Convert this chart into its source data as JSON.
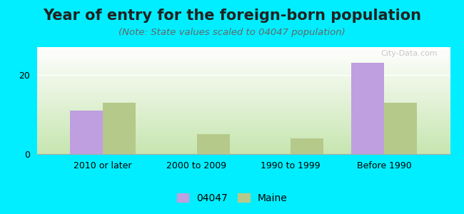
{
  "title": "Year of entry for the foreign-born population",
  "subtitle": "(Note: State values scaled to 04047 population)",
  "categories": [
    "2010 or later",
    "2000 to 2009",
    "1990 to 1999",
    "Before 1990"
  ],
  "values_04047": [
    11,
    0,
    0,
    23
  ],
  "values_maine": [
    13,
    5,
    4,
    13
  ],
  "color_04047": "#bf9fdf",
  "color_maine": "#b5c98a",
  "ylim": [
    0,
    27
  ],
  "yticks": [
    0,
    20
  ],
  "legend_04047": "04047",
  "legend_maine": "Maine",
  "bg_outer": "#00eeff",
  "bar_width": 0.35,
  "title_fontsize": 15,
  "subtitle_fontsize": 9.5,
  "tick_fontsize": 9,
  "legend_fontsize": 10
}
